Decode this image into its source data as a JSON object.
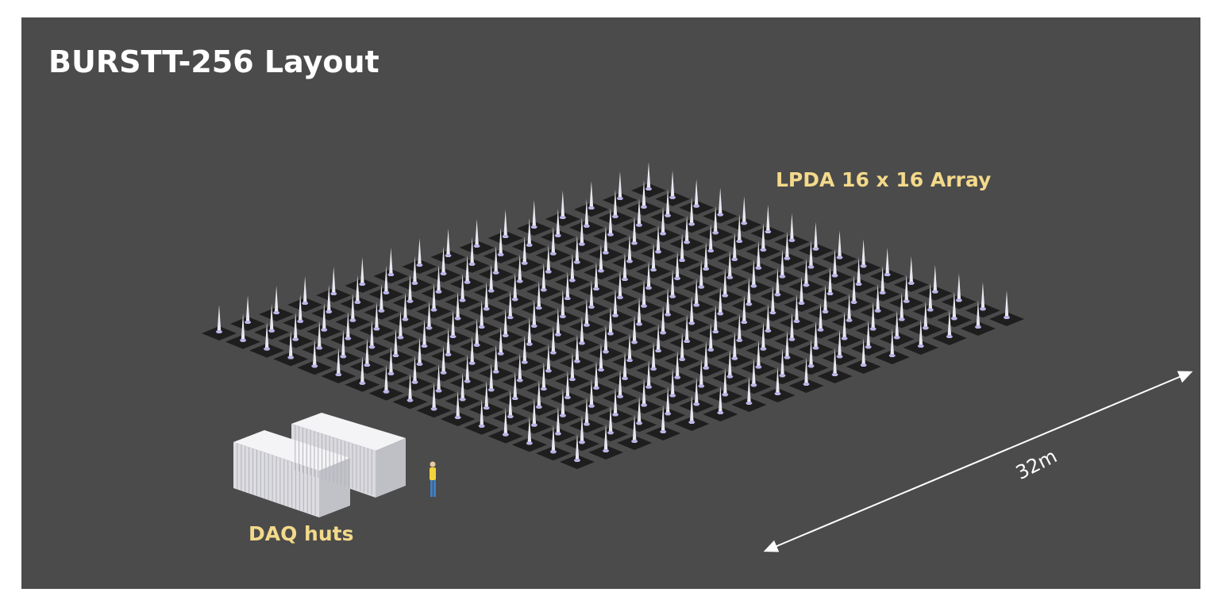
{
  "title": "BURSTT-256 Layout",
  "array_label": "LPDA 16 x 16 Array",
  "array": {
    "rows": 16,
    "cols": 16
  },
  "huts_label": "DAQ huts",
  "dimension_label": "32m",
  "colors": {
    "panel_bg": "#4b4b4b",
    "title": "#ffffff",
    "label_accent": "#f3d98a",
    "antenna": "#e8e8f0",
    "antenna_base": "#1e1e1e",
    "container": "#e6e6ea",
    "person_shirt": "#f2d33a",
    "person_pants": "#3f7fc4"
  }
}
